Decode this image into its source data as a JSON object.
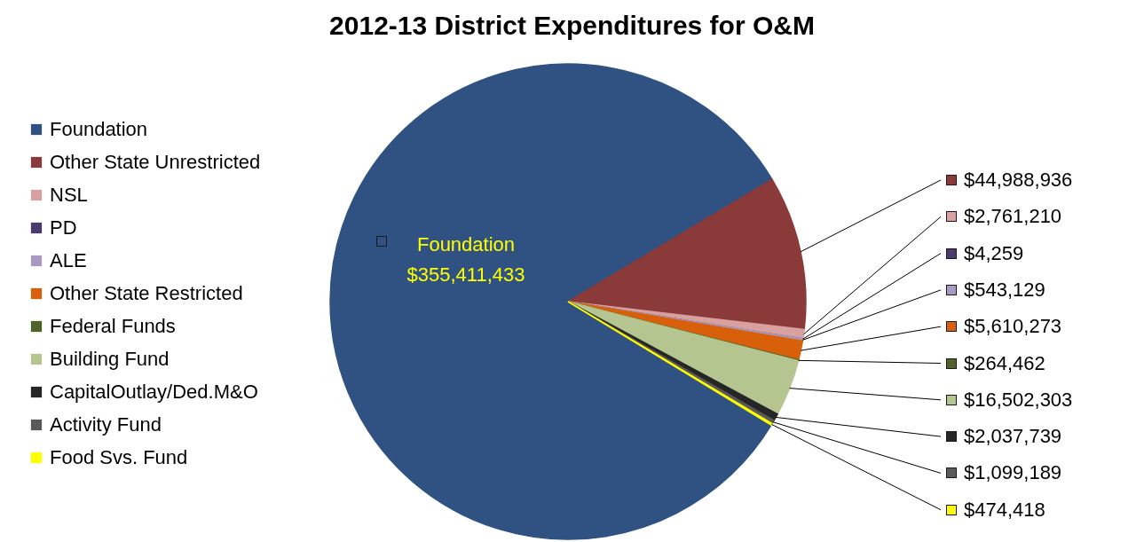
{
  "chart_data": {
    "type": "pie",
    "title": "2012-13 District Expenditures for O&M",
    "categories": [
      "Foundation",
      "Other State Unrestricted",
      "NSL",
      "PD",
      "ALE",
      "Other State Restricted",
      "Federal Funds",
      "Building Fund",
      "CapitalOutlay/Ded.M&O",
      "Activity Fund",
      "Food Svs. Fund"
    ],
    "values": [
      355411433,
      44988936,
      2761210,
      4259,
      543129,
      5610273,
      264462,
      16502303,
      2037739,
      1099189,
      474418
    ],
    "value_labels": [
      "$355,411,433",
      "$44,988,936",
      "$2,761,210",
      "$4,259",
      "$543,129",
      "$5,610,273",
      "$264,462",
      "$16,502,303",
      "$2,037,739",
      "$1,099,189",
      "$474,418"
    ],
    "colors": [
      "#2f5283",
      "#8b3a3a",
      "#d9a0a0",
      "#4a3a6e",
      "#a99bc0",
      "#d9600a",
      "#4f6228",
      "#b5c58f",
      "#262626",
      "#595959",
      "#ffff00"
    ],
    "annotations": [
      {
        "text": "Foundation",
        "x": "Foundation"
      }
    ],
    "legend": "left"
  }
}
